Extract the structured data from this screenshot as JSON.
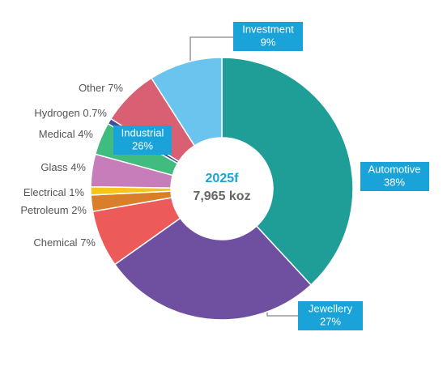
{
  "chart_data": {
    "type": "donut",
    "center_title": "2025f",
    "center_subtitle": "7,965 koz",
    "categories": [
      "Automotive",
      "Jewellery",
      "Chemical",
      "Petroleum",
      "Electrical",
      "Glass",
      "Medical",
      "Hydrogen",
      "Other",
      "Investment"
    ],
    "values": [
      38,
      27,
      7,
      2,
      1,
      4,
      4,
      0.7,
      7,
      9
    ],
    "value_labels": [
      "38%",
      "27%",
      "7%",
      "2%",
      "1%",
      "4%",
      "4%",
      "0.7%",
      "7%",
      "9%"
    ],
    "colors": [
      "#1f9e98",
      "#6f4fa0",
      "#ec5a5a",
      "#d97f2a",
      "#f5c518",
      "#c77dba",
      "#3fbc7e",
      "#3b4fa0",
      "#d95f72",
      "#6ac4ee"
    ],
    "annotations": [
      {
        "label": "Industrial",
        "text": "26%"
      }
    ]
  }
}
